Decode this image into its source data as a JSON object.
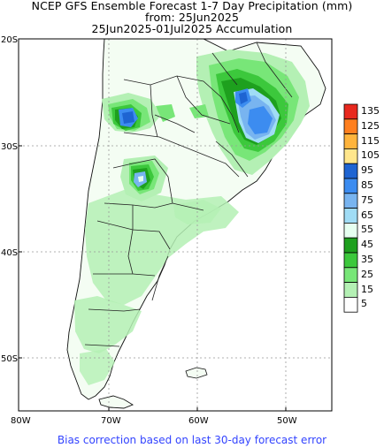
{
  "header": {
    "line1": "NCEP GFS Ensemble Forecast 1-7 Day Precipitation (mm)",
    "line2": "from: 25Jun2025",
    "line3": "25Jun2025-01Jul2025 Accumulation"
  },
  "axes": {
    "lat_labels": [
      "20S",
      "30S",
      "40S",
      "50S"
    ],
    "lon_labels": [
      "80W",
      "70W",
      "60W",
      "50W"
    ]
  },
  "colorbar": {
    "levels": [
      "135",
      "125",
      "115",
      "105",
      "95",
      "85",
      "75",
      "65",
      "55",
      "45",
      "35",
      "25",
      "15",
      "5"
    ],
    "colors": [
      "#e8281e",
      "#ff7f1e",
      "#ffb43c",
      "#ffe68c",
      "#1e64d2",
      "#3c8cf0",
      "#78b4f0",
      "#a0dcf5",
      "#e6fff0",
      "#1ea01e",
      "#3cc83c",
      "#78e678",
      "#b4f0b4",
      "#ffffff"
    ]
  },
  "map": {
    "land_color": "#f4fdf3",
    "ocean_color": "#ffffff",
    "grid_color": "#999999"
  },
  "footer": {
    "note": "Bias correction based on last 30-day forecast error"
  }
}
